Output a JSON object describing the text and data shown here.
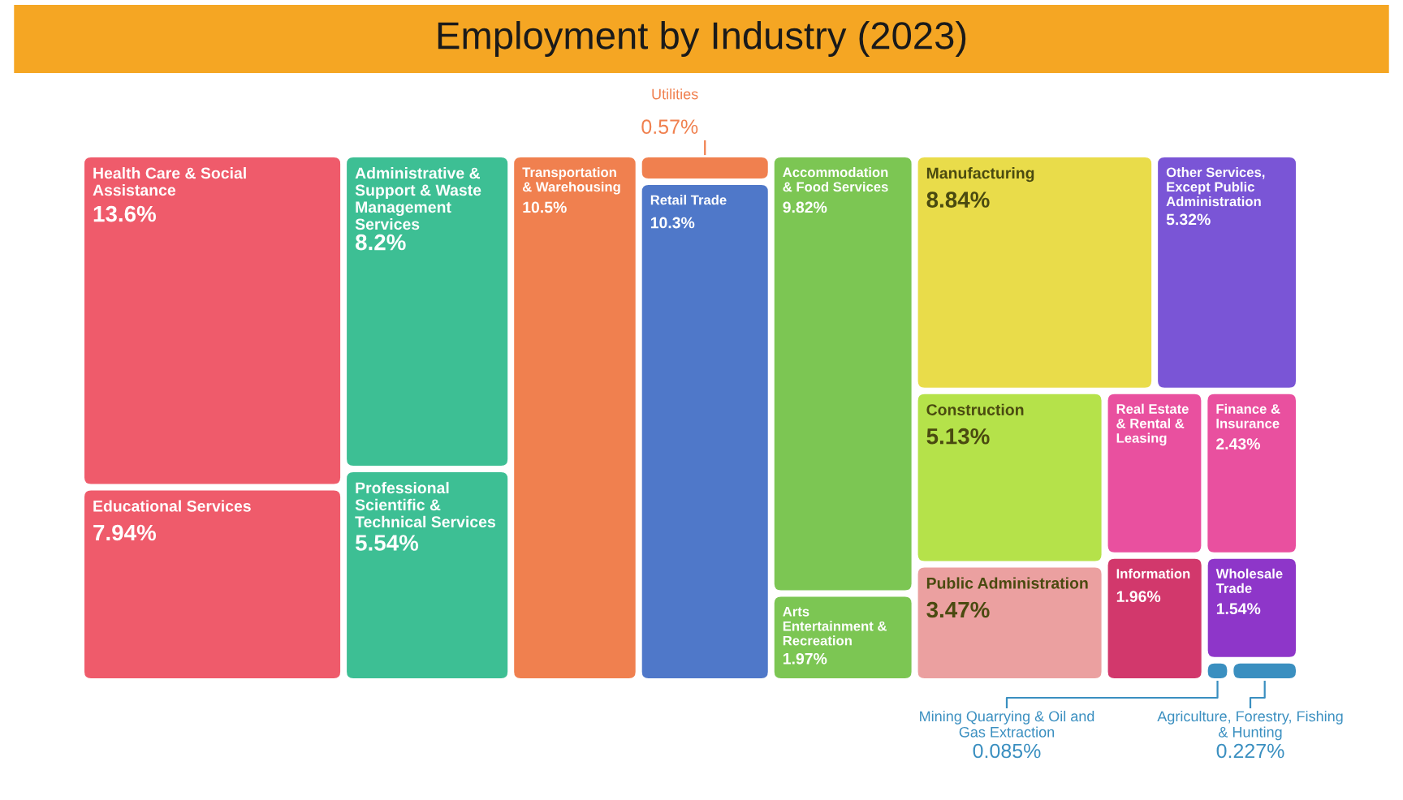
{
  "chart_data": {
    "type": "other",
    "title": "Employment by Industry (2023)",
    "categories": [
      "Health Care & Social Assistance",
      "Educational Services",
      "Administrative & Support & Waste Management Services",
      "Professional Scientific & Technical Services",
      "Transportation & Warehousing",
      "Utilities",
      "Retail Trade",
      "Accommodation & Food Services",
      "Arts Entertainment & Recreation",
      "Manufacturing",
      "Other Services, Except Public Administration",
      "Construction",
      "Public Administration",
      "Real Estate & Rental & Leasing",
      "Finance & Insurance",
      "Information",
      "Wholesale Trade",
      "Mining Quarrying & Oil and Gas Extraction",
      "Agriculture, Forestry, Fishing & Hunting"
    ],
    "values": [
      13.6,
      7.94,
      8.2,
      5.54,
      10.5,
      0.57,
      10.3,
      9.82,
      1.97,
      8.84,
      5.32,
      5.13,
      3.47,
      null,
      2.43,
      1.96,
      1.54,
      0.085,
      0.227
    ],
    "value_labels": [
      "13.6%",
      "7.94%",
      "8.2%",
      "5.54%",
      "10.5%",
      "0.57%",
      "10.3%",
      "9.82%",
      "1.97%",
      "8.84%",
      "5.32%",
      "5.13%",
      "3.47%",
      null,
      "2.43%",
      "1.96%",
      "1.54%",
      "0.085%",
      "0.227%"
    ],
    "colors": [
      "#ef5b6b",
      "#ef5b6b",
      "#3dbf94",
      "#3dbf94",
      "#f0804f",
      "#f0804f",
      "#4f78c9",
      "#7cc653",
      "#7cc653",
      "#e9dc4a",
      "#7a55d6",
      "#b5e24a",
      "#eba0a0",
      "#e9509f",
      "#e9509f",
      "#d2386c",
      "#8e36c9",
      "#3a8fc0",
      "#3a8fc0"
    ]
  }
}
